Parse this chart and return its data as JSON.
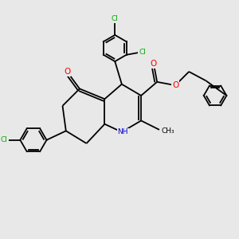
{
  "bg_color": "#e8e8e8",
  "atom_colors": {
    "C": "#000000",
    "N": "#0000cd",
    "O": "#ff0000",
    "Cl": "#00aa00",
    "H": "#000000"
  },
  "bond_color": "#000000",
  "font_size": 6.5,
  "bond_width": 1.3,
  "figsize": [
    3.0,
    3.0
  ],
  "dpi": 100
}
